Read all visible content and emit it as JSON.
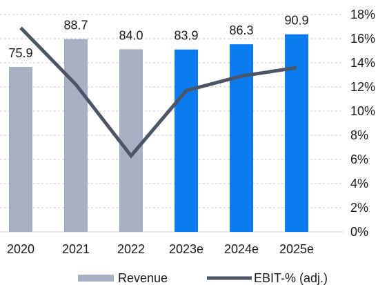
{
  "chart_data": {
    "type": "bar+line",
    "categories": [
      "2020",
      "2021",
      "2022",
      "2023e",
      "2024e",
      "2025e"
    ],
    "series": [
      {
        "name": "Revenue",
        "type": "bar",
        "axis": "left",
        "values": [
          75.9,
          88.7,
          84.0,
          83.9,
          86.3,
          90.9
        ],
        "labels": [
          "75.9",
          "88.7",
          "84.0",
          "83.9",
          "86.3",
          "90.9"
        ],
        "colors": [
          "#aab0c3",
          "#aab0c3",
          "#aab0c3",
          "#0a7cf0",
          "#0a7cf0",
          "#0a7cf0"
        ]
      },
      {
        "name": "EBIT-% (adj.)",
        "type": "line",
        "axis": "right",
        "values": [
          16.9,
          12.2,
          6.3,
          11.7,
          12.9,
          13.6
        ],
        "color": "#4b5566"
      }
    ],
    "left_axis": {
      "range": [
        0,
        100
      ],
      "visible": false
    },
    "right_axis": {
      "range": [
        0,
        18
      ],
      "ticks": [
        0,
        2,
        4,
        6,
        8,
        10,
        12,
        14,
        16,
        18
      ],
      "tick_labels": [
        "0%",
        "2%",
        "4%",
        "6%",
        "8%",
        "10%",
        "12%",
        "14%",
        "16%",
        "18%"
      ]
    },
    "grid": "horizontal-dashed",
    "legend": {
      "placement": "bottom",
      "entries": [
        {
          "label": "Revenue",
          "swatch": "bar",
          "color": "#aab0c3"
        },
        {
          "label": "EBIT-% (adj.)",
          "swatch": "line",
          "color": "#4b5566"
        }
      ]
    }
  }
}
